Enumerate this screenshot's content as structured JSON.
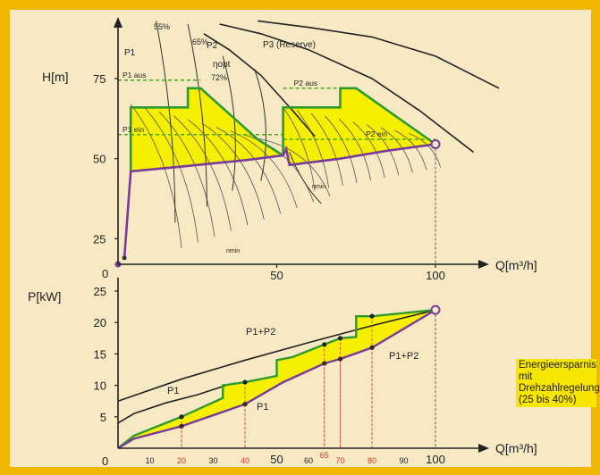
{
  "chart_data": [
    {
      "type": "line",
      "xlabel": "Q[m³/h]",
      "ylabel": "H[m]",
      "xlim": [
        0,
        100
      ],
      "ylim": [
        17,
        100
      ],
      "x_ticks": [
        "0",
        "50",
        "100"
      ],
      "y_ticks": [
        "25",
        "50",
        "75"
      ],
      "pump_curves": [
        {
          "name": "P1",
          "points": [
            [
              27,
              89
            ],
            [
              35,
              84
            ],
            [
              45,
              76
            ],
            [
              55,
              65
            ],
            [
              62,
              57
            ]
          ]
        },
        {
          "name": "P2",
          "points": [
            [
              32,
              92
            ],
            [
              45,
              89
            ],
            [
              60,
              84
            ],
            [
              80,
              75
            ],
            [
              95,
              65
            ],
            [
              112,
              52
            ]
          ]
        },
        {
          "name": "P3 (Reserve)",
          "points": [
            [
              44,
              93
            ],
            [
              60,
              91
            ],
            [
              80,
              88
            ],
            [
              100,
              82
            ],
            [
              120,
              72
            ]
          ]
        }
      ],
      "system_curve": {
        "points": [
          [
            2,
            19
          ],
          [
            4,
            46
          ],
          [
            20,
            47.5
          ],
          [
            40,
            49.5
          ],
          [
            52,
            51
          ],
          [
            53,
            53
          ],
          [
            54,
            48
          ],
          [
            70,
            50
          ],
          [
            85,
            52.5
          ],
          [
            100,
            54.5
          ]
        ]
      },
      "control_envelope": {
        "points": [
          [
            4,
            46
          ],
          [
            4,
            66
          ],
          [
            22,
            66
          ],
          [
            22,
            72
          ],
          [
            26,
            72
          ],
          [
            44,
            56
          ],
          [
            52,
            51
          ],
          [
            52,
            66
          ],
          [
            70,
            66
          ],
          [
            70,
            72
          ],
          [
            75,
            72
          ],
          [
            100,
            54.5
          ]
        ]
      },
      "setpoint_lines": [
        {
          "label": "P1 aus",
          "y": 74.5,
          "x": [
            0,
            26
          ]
        },
        {
          "label": "P1 ein",
          "y": 57.5,
          "x": [
            0,
            52
          ]
        },
        {
          "label": "P2 aus",
          "y": 72,
          "x": [
            52,
            75
          ]
        },
        {
          "label": "P2 ein",
          "y": 56,
          "x": [
            52,
            100
          ]
        }
      ],
      "efficiency_labels": [
        "55%",
        "65%",
        "ηopt",
        "72%"
      ],
      "speed_labels": [
        "nmin",
        "nmin"
      ],
      "end_point": {
        "x": 100,
        "y": 54.5
      },
      "start_point": {
        "x": 0,
        "y": 17
      }
    },
    {
      "type": "line",
      "xlabel": "Q[m³/h]",
      "ylabel": "P[kW]",
      "xlim": [
        0,
        100
      ],
      "ylim": [
        0,
        25
      ],
      "x_ticks": [
        "0",
        "10",
        "20",
        "30",
        "40",
        "50",
        "60",
        "70",
        "80",
        "90",
        "100"
      ],
      "x_ticks_highlight": [
        "20",
        "40",
        "65",
        "70",
        "80"
      ],
      "y_ticks": [
        "5",
        "10",
        "15",
        "20",
        "25"
      ],
      "series": [
        {
          "name": "P1",
          "x": [
            0,
            5,
            15,
            25,
            34
          ],
          "y": [
            4,
            5.5,
            7.2,
            8.5,
            10
          ]
        },
        {
          "name": "P1+P2",
          "x": [
            0,
            20,
            40,
            60,
            80,
            100
          ],
          "y": [
            7.5,
            11,
            14,
            16.8,
            19.5,
            22
          ]
        },
        {
          "name": "P1",
          "x": [
            5,
            20,
            34,
            40,
            50
          ],
          "y": [
            9,
            10.8,
            12.5,
            13,
            14
          ]
        },
        {
          "name": "P1+P2",
          "x": [
            40,
            52,
            65,
            70,
            80,
            100
          ],
          "y": [
            7,
            10.5,
            13.5,
            14.2,
            16,
            22
          ]
        }
      ],
      "marked_points": [
        {
          "x": 20,
          "y": 3.5
        },
        {
          "x": 20,
          "y": 5
        },
        {
          "x": 40,
          "y": 7
        },
        {
          "x": 40,
          "y": 10.5
        },
        {
          "x": 65,
          "y": 13.5
        },
        {
          "x": 65,
          "y": 16.5
        },
        {
          "x": 70,
          "y": 14.2
        },
        {
          "x": 70,
          "y": 17.5
        },
        {
          "x": 80,
          "y": 16
        },
        {
          "x": 80,
          "y": 21
        }
      ],
      "end_point": {
        "x": 100,
        "y": 22
      },
      "annotation": "Energieersparnis mit Drehzahlregelung (25 bis 40%)"
    }
  ],
  "colors": {
    "frame": "#f0b800",
    "panel": "#f6e9c4",
    "fill": "#f7ef00",
    "envelope": "#2e9a2e",
    "system": "#7a3a9a",
    "curve": "#222222",
    "highlight_tick": "#d33a1a",
    "dashed_setpoint": "#4aa81e"
  }
}
